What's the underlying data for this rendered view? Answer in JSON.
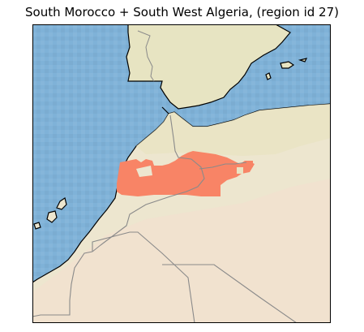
{
  "title": "South Morocco + South West Algeria, (region id 27)",
  "colors": {
    "ocean": "#7fb2d8",
    "land_north": "#e7e4c2",
    "land_mid": "#ede6cf",
    "land_desert": "#f1e0cf",
    "region_highlight": "#f88466",
    "coastline": "#000000",
    "border": "#8a8a8a",
    "frame": "#000000"
  },
  "map": {
    "region_id": 27,
    "region_name": "South Morocco + South West Algeria",
    "layers": [
      "ocean",
      "land",
      "coastlines",
      "country-borders",
      "highlighted-region"
    ]
  }
}
